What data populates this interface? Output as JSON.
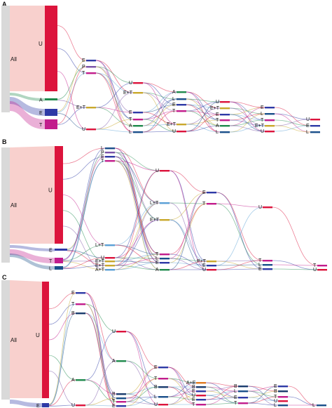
{
  "colors": {
    "all_bar": "#d9d9d9",
    "U": "#dc143c",
    "E": "#2e3aa6",
    "T": "#c21c8c",
    "A": "#1f8a4c",
    "P": "#7a52a8",
    "L": "#1a4f8a",
    "ET": "#c9a82c",
    "LT": "#5aa0d6",
    "AE": "#e07a1f",
    "AT": "#5aa0d6",
    "B": "#1a3c6e",
    "flow_default": "#f4b6b6"
  },
  "panels": [
    {
      "letter": "A",
      "root": "All",
      "main": "U",
      "stages": [
        [
          "U",
          "A",
          "E",
          "T"
        ],
        [
          "E",
          "P",
          "T",
          "E+T",
          "U"
        ],
        [
          "U",
          "E+T",
          "E",
          "T",
          "A",
          "L"
        ],
        [
          "A",
          "L",
          "E",
          "T",
          "E+T",
          "U"
        ],
        [
          "U",
          "E+T",
          "E",
          "T",
          "A",
          "L"
        ],
        [
          "E",
          "L",
          "T",
          "E+T",
          "U"
        ],
        [
          "U",
          "E",
          "L"
        ]
      ]
    },
    {
      "letter": "B",
      "root": "All",
      "main": "U",
      "stages": [
        [
          "U",
          "E",
          "T",
          "L"
        ],
        [
          "L",
          "P",
          "E",
          "T",
          "L+T",
          "U",
          "E+T",
          "E+T",
          "A+T"
        ],
        [
          "U",
          "L+T",
          "E+T",
          "T",
          "L",
          "E",
          "A"
        ],
        [
          "E",
          "T",
          "P+T",
          "E",
          "U"
        ],
        [
          "U",
          "T",
          "L",
          "E"
        ],
        [
          "T",
          "U"
        ]
      ]
    },
    {
      "letter": "C",
      "root": "All",
      "main": "U",
      "stages": [
        [
          "U",
          "E"
        ],
        [
          "E",
          "T",
          "B",
          "A",
          "U"
        ],
        [
          "U",
          "A",
          "B",
          "L",
          "T",
          "E"
        ],
        [
          "E",
          "T",
          "B",
          "L",
          "U"
        ],
        [
          "A+E",
          "B",
          "E",
          "U",
          "E",
          "T"
        ],
        [
          "B",
          "L",
          "E",
          "T"
        ],
        [
          "E",
          "B",
          "T",
          "U",
          "L"
        ],
        [
          "L"
        ]
      ]
    }
  ]
}
